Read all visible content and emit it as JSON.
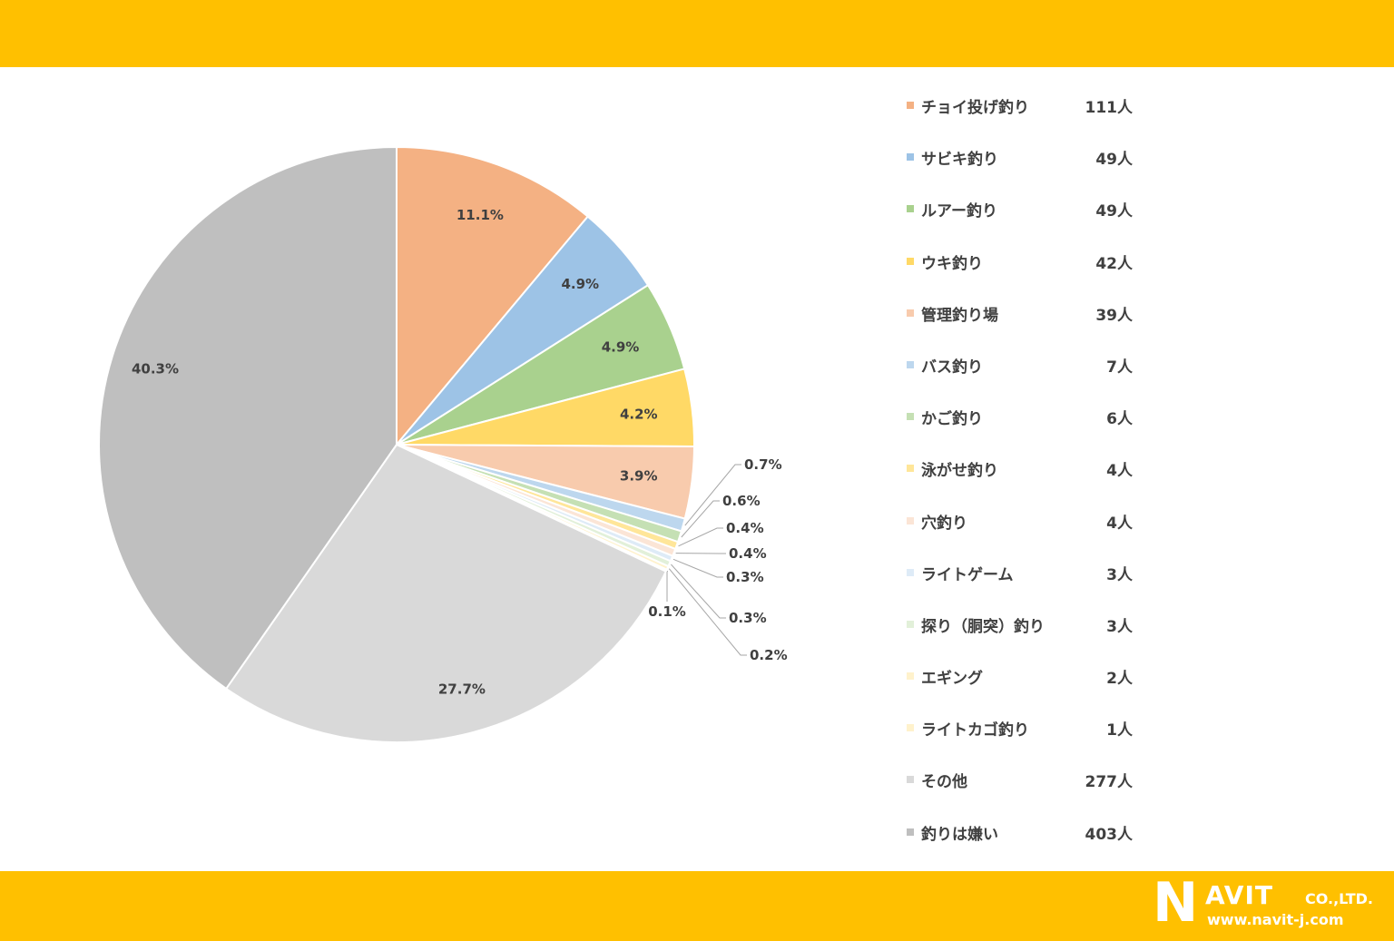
{
  "colors": {
    "band": "#FFC000",
    "text": "#404040"
  },
  "chart_data": {
    "type": "pie",
    "title": "",
    "unit": "人",
    "slices": [
      {
        "label": "チョイ投げ釣り",
        "count": 111,
        "percent": "11.1%",
        "color": "#F4B183"
      },
      {
        "label": "サビキ釣り",
        "count": 49,
        "percent": "4.9%",
        "color": "#9DC3E6"
      },
      {
        "label": "ルアー釣り",
        "count": 49,
        "percent": "4.9%",
        "color": "#A9D18E"
      },
      {
        "label": "ウキ釣り",
        "count": 42,
        "percent": "4.2%",
        "color": "#FFD966"
      },
      {
        "label": "管理釣り場",
        "count": 39,
        "percent": "3.9%",
        "color": "#F8CBAD"
      },
      {
        "label": "バス釣り",
        "count": 7,
        "percent": "0.7%",
        "color": "#BDD7EE"
      },
      {
        "label": "かご釣り",
        "count": 6,
        "percent": "0.6%",
        "color": "#C5E0B4"
      },
      {
        "label": "泳がせ釣り",
        "count": 4,
        "percent": "0.4%",
        "color": "#FFE699"
      },
      {
        "label": "穴釣り",
        "count": 4,
        "percent": "0.4%",
        "color": "#FBE5D6"
      },
      {
        "label": "ライトゲーム",
        "count": 3,
        "percent": "0.3%",
        "color": "#DEEBF7"
      },
      {
        "label": "探り（胴突）釣り",
        "count": 3,
        "percent": "0.3%",
        "color": "#E2F0D9"
      },
      {
        "label": "エギング",
        "count": 2,
        "percent": "0.2%",
        "color": "#FFF2CC"
      },
      {
        "label": "ライトカゴ釣り",
        "count": 1,
        "percent": "0.1%",
        "color": "#FFF2CC"
      },
      {
        "label": "その他",
        "count": 277,
        "percent": "27.7%",
        "color": "#D9D9D9"
      },
      {
        "label": "釣りは嫌い",
        "count": 403,
        "percent": "40.3%",
        "color": "#BFBFBF"
      }
    ]
  },
  "logo": {
    "n": "N",
    "avit": "AVIT",
    "co": "CO.,LTD.",
    "url": "www.navit-j.com"
  }
}
